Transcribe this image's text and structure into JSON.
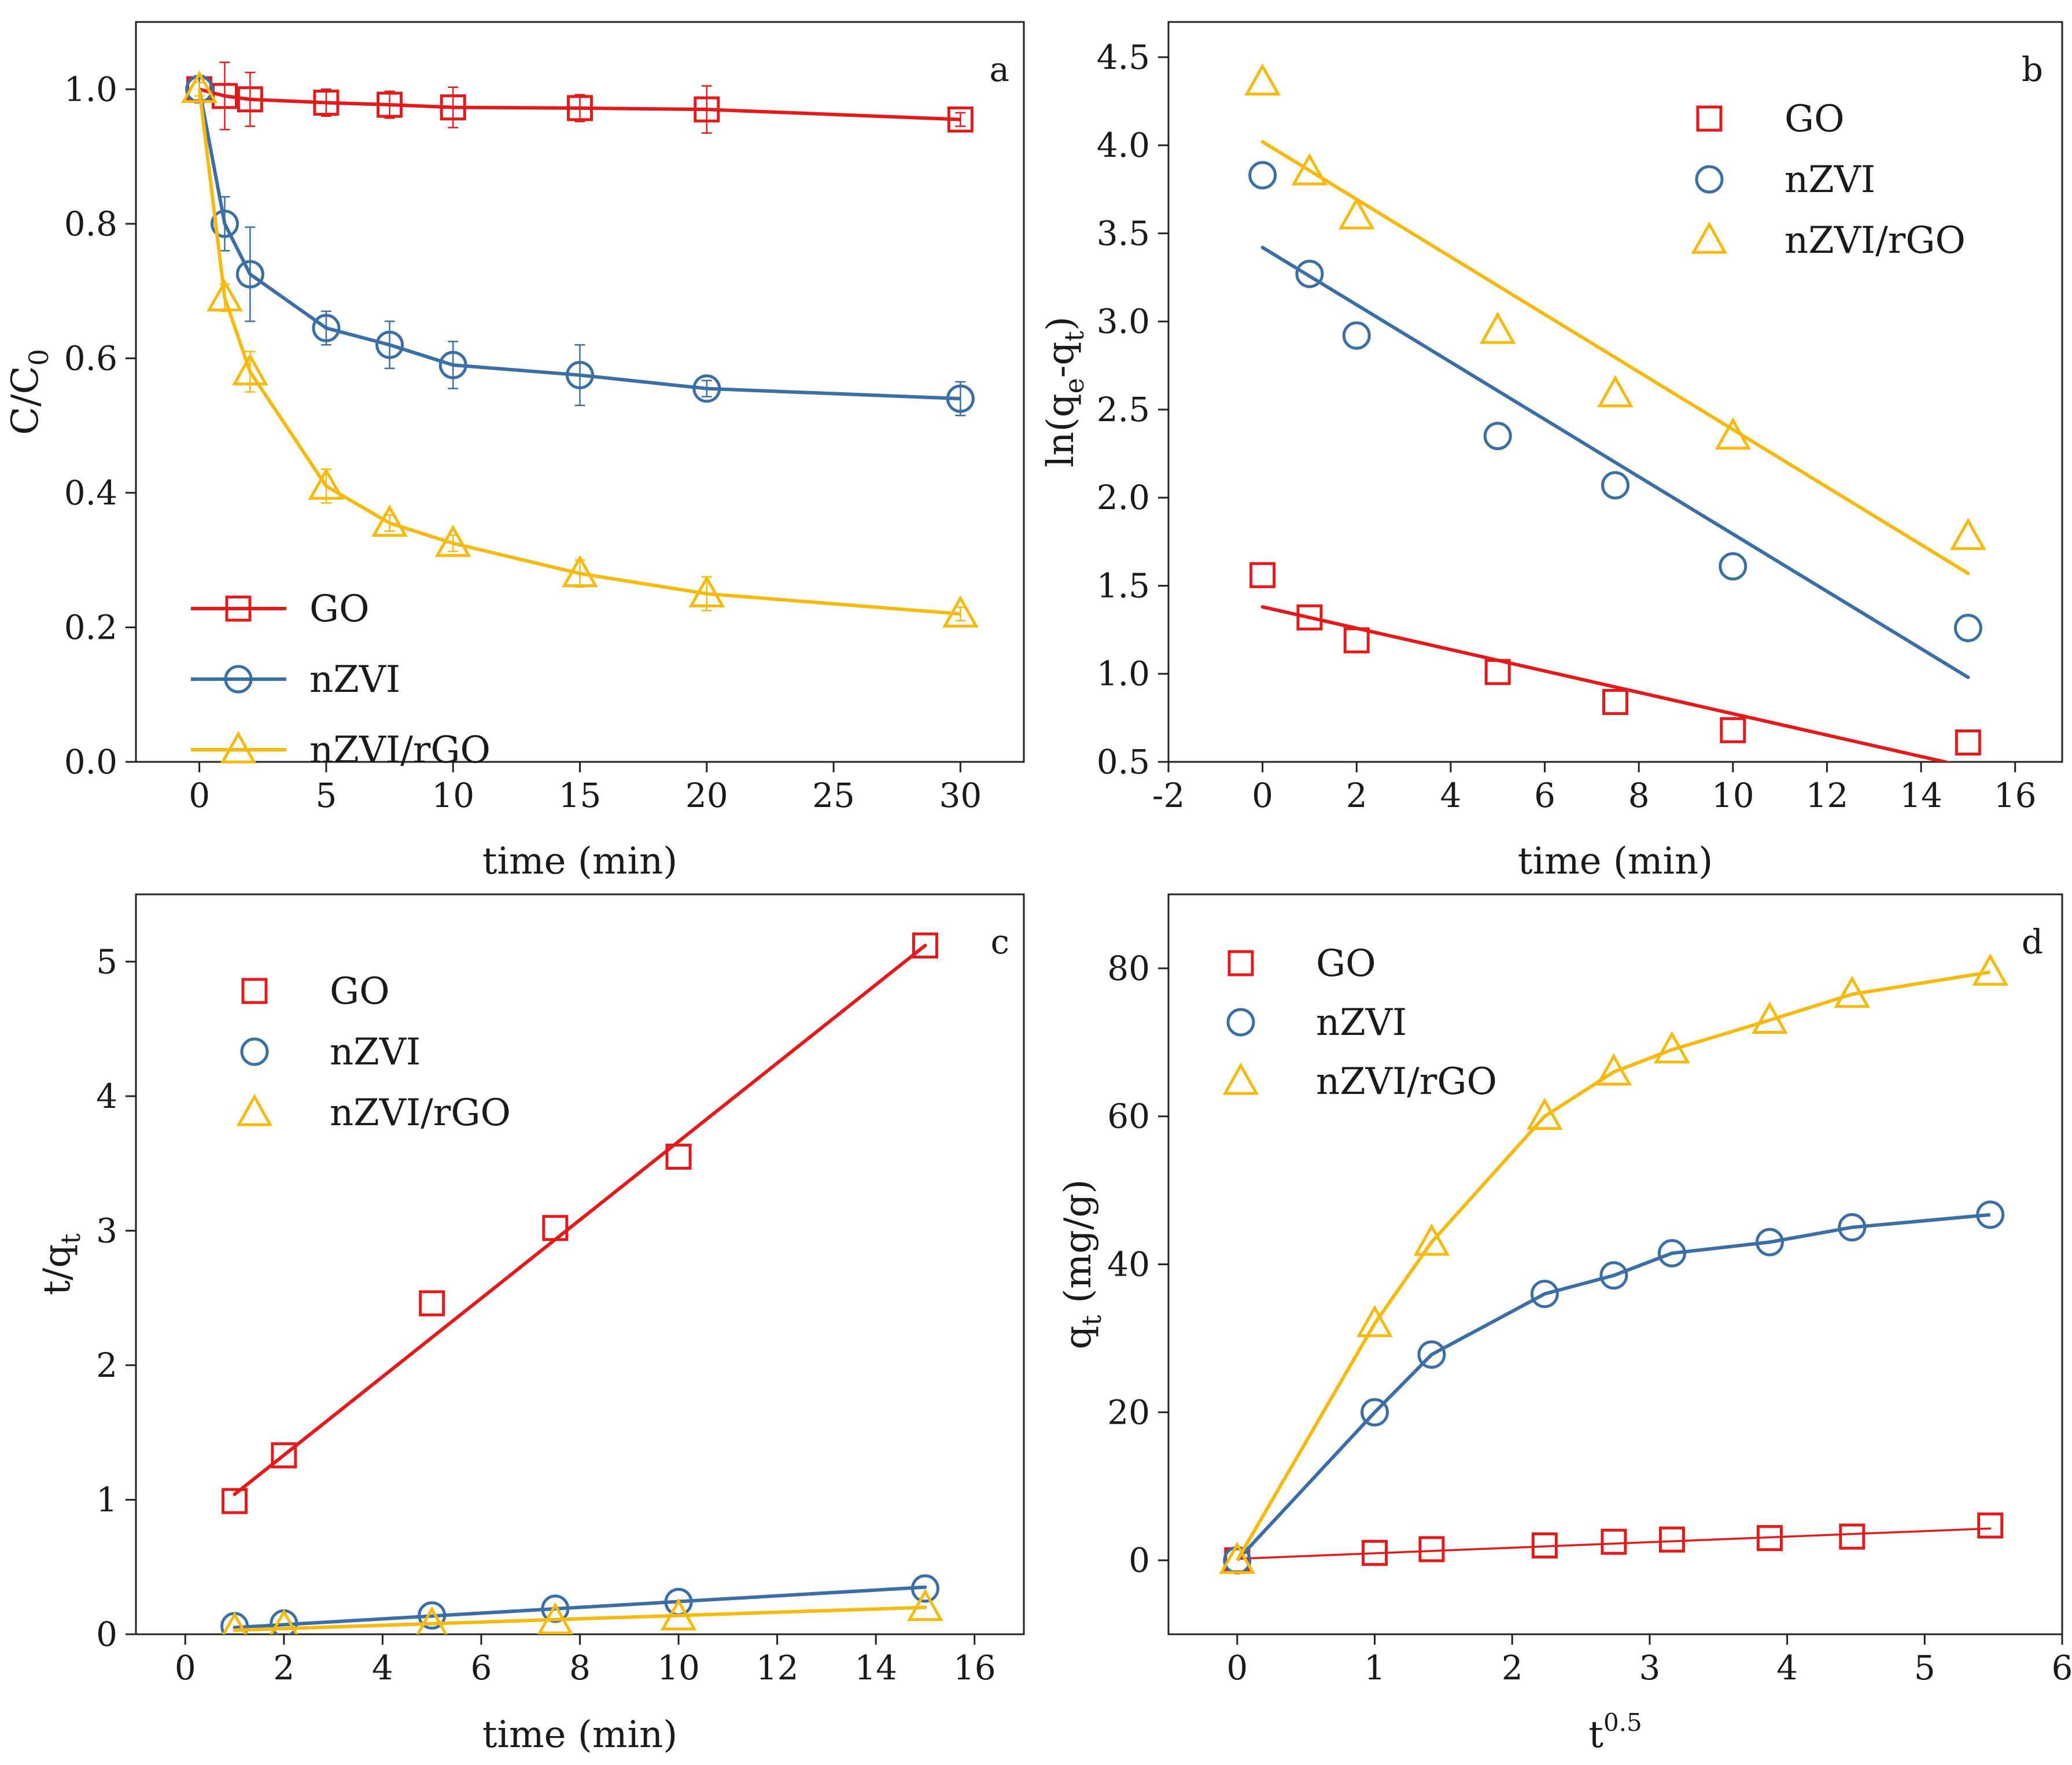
{
  "colors": {
    "GO": "#e31a1c",
    "nZVI": "#3a6ea5",
    "nZVI/rGO": "#f5b90f"
  },
  "chart_data": [
    {
      "panel": "a",
      "type": "line",
      "letter": "a",
      "xlabel": "time (min)",
      "ylabel_main": "C/C",
      "ylabel_sub": "0",
      "xlim": [
        -2.5,
        32.5
      ],
      "ylim": [
        0.0,
        1.1
      ],
      "xticks": [
        0,
        5,
        10,
        15,
        20,
        25,
        30
      ],
      "yticks": [
        0.0,
        0.2,
        0.4,
        0.6,
        0.8,
        1.0
      ],
      "ytick_labels": [
        "0.0",
        "0.2",
        "0.4",
        "0.6",
        "0.8",
        "1.0"
      ],
      "legend_position": "bottom-left",
      "legend_style": "line-marker",
      "series": [
        {
          "name": "GO",
          "key": "GO",
          "marker": "square",
          "connect": "line",
          "x": [
            0,
            1,
            2,
            5,
            7.5,
            10,
            15,
            20,
            30
          ],
          "y": [
            1.0,
            0.99,
            0.985,
            0.98,
            0.977,
            0.973,
            0.972,
            0.97,
            0.955
          ],
          "err": [
            0.02,
            0.05,
            0.04,
            0.02,
            0.02,
            0.03,
            0.02,
            0.035,
            0.01
          ]
        },
        {
          "name": "nZVI",
          "key": "nZVI",
          "marker": "circle",
          "connect": "line",
          "x": [
            0,
            1,
            2,
            5,
            7.5,
            10,
            15,
            20,
            30
          ],
          "y": [
            1.0,
            0.8,
            0.725,
            0.645,
            0.62,
            0.59,
            0.575,
            0.555,
            0.54
          ],
          "err": [
            0.02,
            0.04,
            0.07,
            0.025,
            0.035,
            0.035,
            0.045,
            0.012,
            0.025
          ]
        },
        {
          "name": "nZVI/rGO",
          "key": "nZVI/rGO",
          "marker": "triangle",
          "connect": "line",
          "x": [
            0,
            1,
            2,
            5,
            7.5,
            10,
            15,
            20,
            30
          ],
          "y": [
            1.0,
            0.69,
            0.58,
            0.41,
            0.355,
            0.325,
            0.28,
            0.25,
            0.22
          ],
          "err": [
            0.01,
            0.02,
            0.03,
            0.025,
            0.012,
            0.012,
            0.02,
            0.025,
            0.01
          ]
        }
      ]
    },
    {
      "panel": "b",
      "type": "scatter",
      "letter": "b",
      "xlabel": "time (min)",
      "ylabel_pre": "ln(q",
      "ylabel_sub1": "e",
      "ylabel_mid": "-q",
      "ylabel_sub2": "t",
      "ylabel_post": ")",
      "xlim": [
        -2,
        17
      ],
      "ylim": [
        0.5,
        4.7
      ],
      "xticks": [
        -2,
        0,
        2,
        4,
        6,
        8,
        10,
        12,
        14,
        16
      ],
      "yticks": [
        0.5,
        1.0,
        1.5,
        2.0,
        2.5,
        3.0,
        3.5,
        4.0,
        4.5
      ],
      "ytick_labels": [
        "0.5",
        "1.0",
        "1.5",
        "2.0",
        "2.5",
        "3.0",
        "3.5",
        "4.0",
        "4.5"
      ],
      "legend_position": "top-right",
      "legend_style": "marker",
      "series": [
        {
          "name": "GO",
          "key": "GO",
          "marker": "square",
          "x": [
            0,
            1,
            2,
            5,
            7.5,
            10,
            15
          ],
          "y": [
            1.56,
            1.32,
            1.19,
            1.01,
            0.84,
            0.68,
            0.61
          ],
          "fit": [
            [
              0,
              1.38
            ],
            [
              15,
              0.47
            ]
          ]
        },
        {
          "name": "nZVI",
          "key": "nZVI",
          "marker": "circle",
          "x": [
            0,
            1,
            2,
            5,
            7.5,
            10,
            15
          ],
          "y": [
            3.83,
            3.27,
            2.92,
            2.35,
            2.07,
            1.61,
            1.26
          ],
          "fit": [
            [
              0,
              3.42
            ],
            [
              15,
              0.98
            ]
          ]
        },
        {
          "name": "nZVI/rGO",
          "key": "nZVI/rGO",
          "marker": "triangle",
          "x": [
            0,
            1,
            2,
            5,
            7.5,
            10,
            15
          ],
          "y": [
            4.36,
            3.85,
            3.6,
            2.95,
            2.59,
            2.35,
            1.78
          ],
          "fit": [
            [
              0,
              4.02
            ],
            [
              15,
              1.57
            ]
          ]
        }
      ]
    },
    {
      "panel": "c",
      "type": "scatter",
      "letter": "c",
      "xlabel": "time (min)",
      "ylabel_main": "t/q",
      "ylabel_sub": "t",
      "xlim": [
        -1,
        17
      ],
      "ylim": [
        0,
        5.5
      ],
      "xticks": [
        0,
        2,
        4,
        6,
        8,
        10,
        12,
        14,
        16
      ],
      "yticks": [
        0,
        1,
        2,
        3,
        4,
        5
      ],
      "ytick_labels": [
        "0",
        "1",
        "2",
        "3",
        "4",
        "5"
      ],
      "legend_position": "top-left",
      "legend_style": "marker",
      "series": [
        {
          "name": "GO",
          "key": "GO",
          "marker": "square",
          "x": [
            1,
            2,
            5,
            7.5,
            10,
            15
          ],
          "y": [
            0.99,
            1.33,
            2.46,
            3.02,
            3.55,
            5.12
          ],
          "fit": [
            [
              1,
              1.04
            ],
            [
              15,
              5.12
            ]
          ]
        },
        {
          "name": "nZVI",
          "key": "nZVI",
          "marker": "circle",
          "x": [
            1,
            2,
            5,
            7.5,
            10,
            15
          ],
          "y": [
            0.06,
            0.08,
            0.14,
            0.19,
            0.24,
            0.34
          ],
          "fit": [
            [
              1,
              0.05
            ],
            [
              15,
              0.35
            ]
          ]
        },
        {
          "name": "nZVI/rGO",
          "key": "nZVI/rGO",
          "marker": "triangle",
          "x": [
            1,
            2,
            5,
            7.5,
            10,
            15
          ],
          "y": [
            0.03,
            0.05,
            0.07,
            0.1,
            0.13,
            0.2
          ],
          "fit": [
            [
              1,
              0.03
            ],
            [
              15,
              0.2
            ]
          ]
        }
      ]
    },
    {
      "panel": "d",
      "type": "line",
      "letter": "d",
      "xlabel_main": "t",
      "xlabel_sup": "0.5",
      "ylabel_main": "q",
      "ylabel_sub": "t",
      "ylabel_post": " (mg/g)",
      "xlim": [
        -0.5,
        6
      ],
      "ylim": [
        -10,
        90
      ],
      "xticks": [
        0,
        1,
        2,
        3,
        4,
        5,
        6
      ],
      "yticks": [
        0,
        20,
        40,
        60,
        80
      ],
      "ytick_labels": [
        "0",
        "20",
        "40",
        "60",
        "80"
      ],
      "legend_position": "top-left",
      "legend_style": "marker",
      "series": [
        {
          "name": "GO",
          "key": "GO",
          "marker": "square",
          "connect": "fit",
          "x": [
            0,
            1,
            1.414,
            2.236,
            2.739,
            3.162,
            3.873,
            4.472,
            5.477
          ],
          "y": [
            0,
            1.0,
            1.5,
            2.0,
            2.5,
            2.8,
            3.0,
            3.2,
            4.7
          ],
          "fit": [
            [
              0,
              0.2
            ],
            [
              5.477,
              4.3
            ]
          ]
        },
        {
          "name": "nZVI",
          "key": "nZVI",
          "marker": "circle",
          "connect": "line",
          "x": [
            0,
            1,
            1.414,
            2.236,
            2.739,
            3.162,
            3.873,
            4.472,
            5.477
          ],
          "y": [
            0,
            20,
            27.8,
            36,
            38.5,
            41.5,
            43,
            45,
            46.7
          ]
        },
        {
          "name": "nZVI/rGO",
          "key": "nZVI/rGO",
          "marker": "triangle",
          "connect": "line",
          "x": [
            0,
            1,
            1.414,
            2.236,
            2.739,
            3.162,
            3.873,
            4.472,
            5.477
          ],
          "y": [
            0,
            32,
            43,
            60,
            66,
            69,
            73,
            76.5,
            79.5
          ]
        }
      ]
    }
  ]
}
